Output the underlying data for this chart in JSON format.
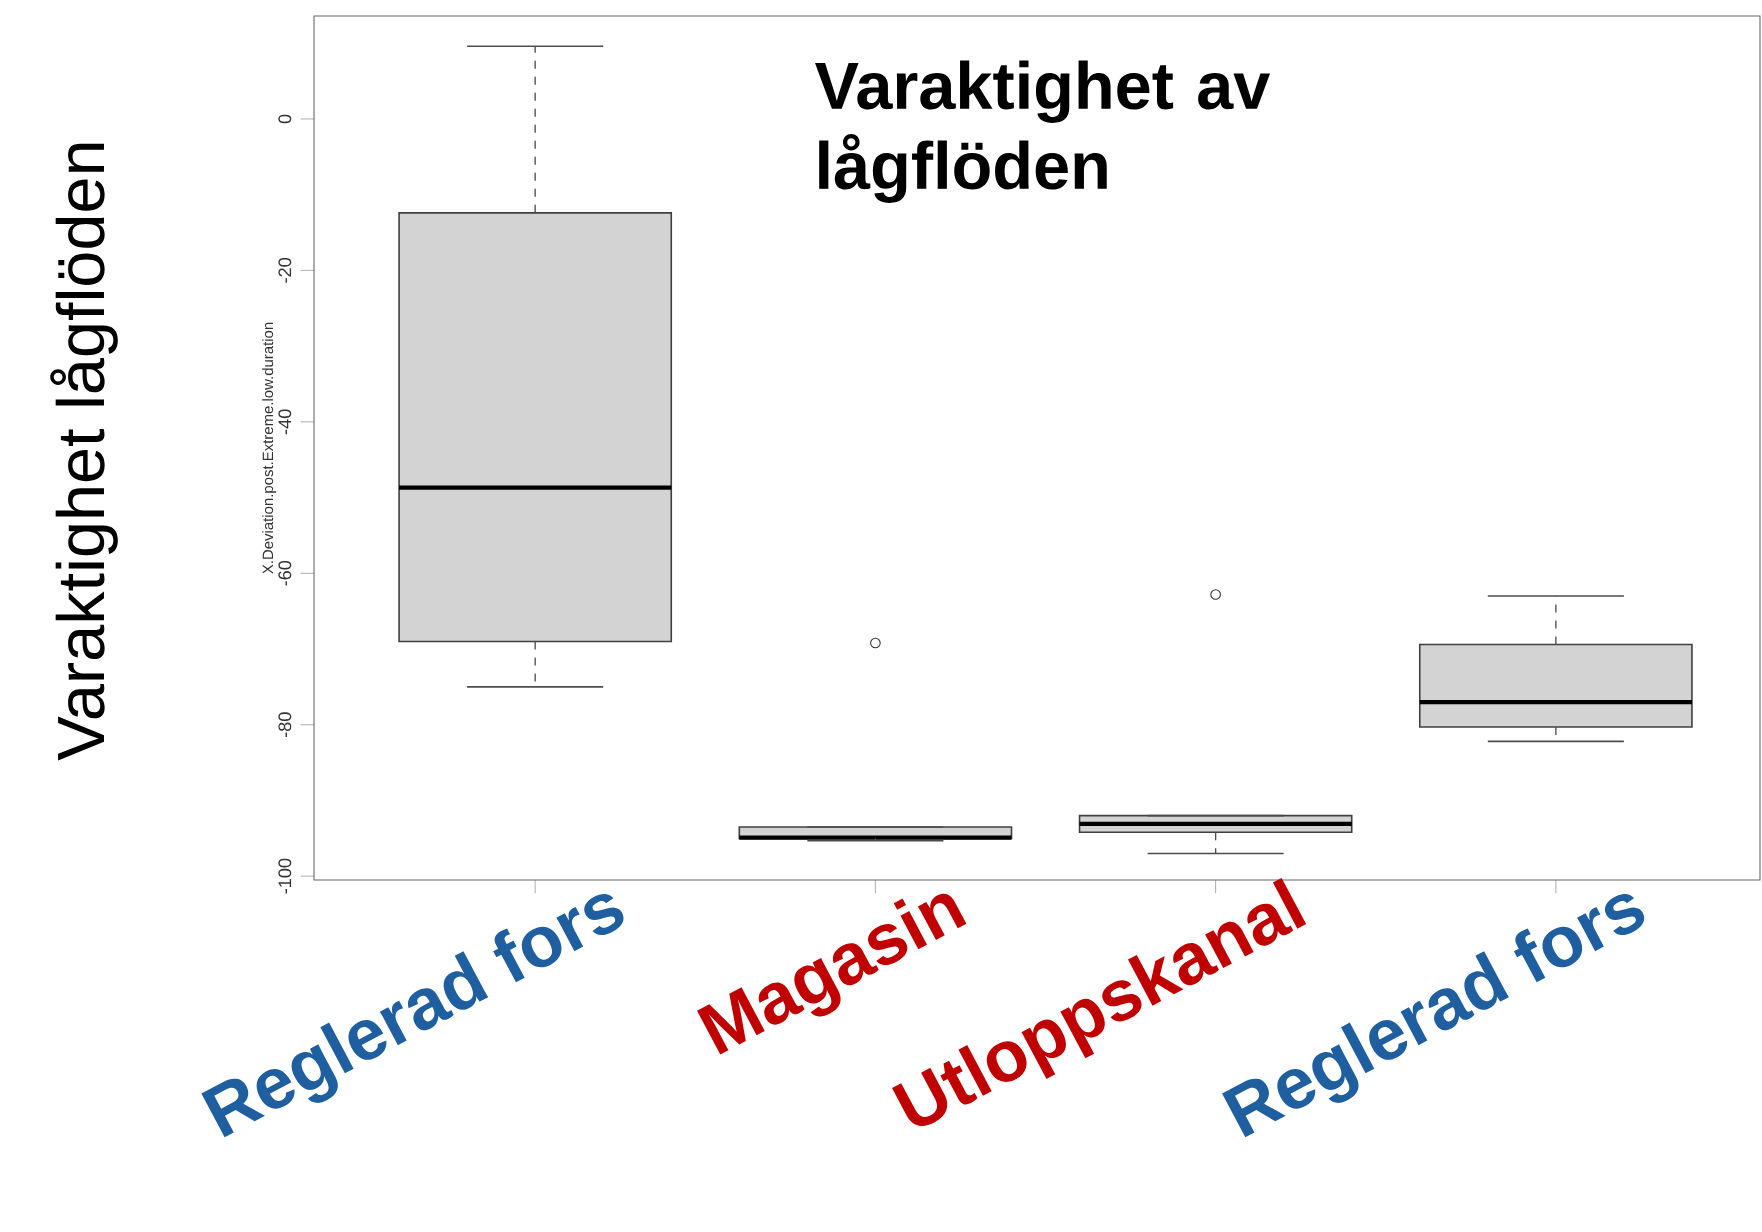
{
  "chart_data": {
    "type": "box",
    "title": "Varaktighet av lågflöden",
    "ylabel": "X.Deviation.post.Extreme.low.duration",
    "annotations": [
      "Varaktighet lågflöden"
    ],
    "categories": [
      "Reglerad fors",
      "Magasin",
      "Utloppskanal",
      "Reglerad fors"
    ],
    "boxes": [
      {
        "low": -75,
        "q1": -69,
        "median": -48.7,
        "q3": -12.4,
        "high": 9.6
      },
      {
        "low": -95.3,
        "q1": -95,
        "median": -94.9,
        "q3": -93.5,
        "high": -93.5,
        "outliers": [
          -69.2
        ]
      },
      {
        "low": -97,
        "q1": -94.2,
        "median": -93.1,
        "q3": -92,
        "high": -92,
        "outliers": [
          -62.8
        ]
      },
      {
        "low": -82.2,
        "q1": -80.3,
        "median": -77,
        "q3": -69.4,
        "high": -63
      }
    ],
    "color": "#d3d3d3",
    "ylim": [
      -100.5,
      13.6
    ],
    "yticks": [
      -100,
      -80,
      -60,
      -40,
      -20,
      0
    ],
    "grid": false
  }
}
